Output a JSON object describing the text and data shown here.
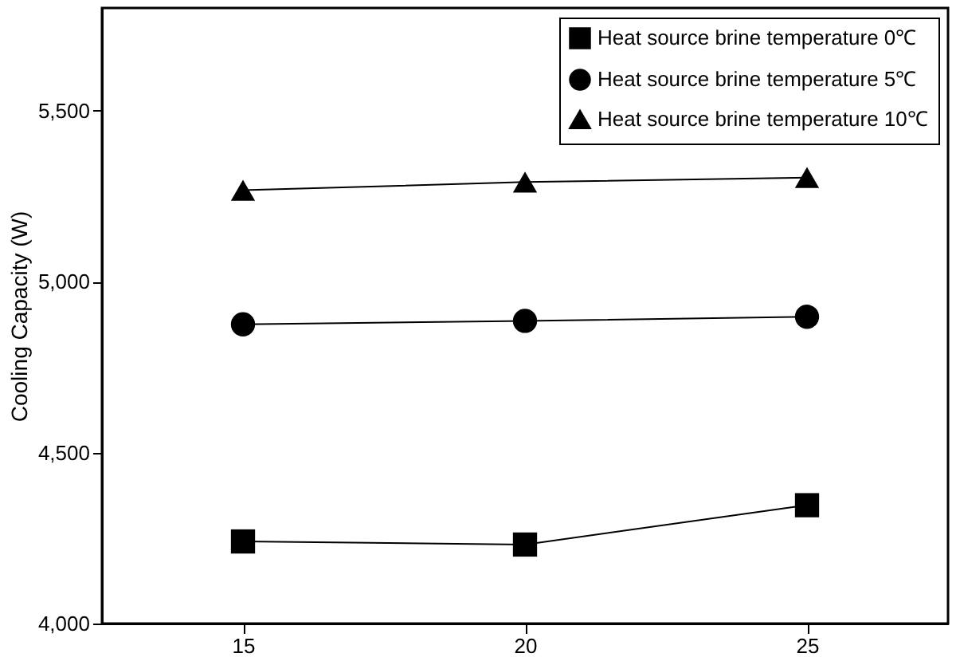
{
  "chart_data": {
    "type": "line",
    "ylabel": "Cooling Capacity (W)",
    "x": [
      15,
      20,
      25
    ],
    "xlim": [
      12.5,
      27.5
    ],
    "xticks": [
      15,
      20,
      25
    ],
    "ylim": [
      4000,
      5800
    ],
    "yticks": [
      {
        "value": 4000,
        "label": "4,000"
      },
      {
        "value": 4500,
        "label": "4,500"
      },
      {
        "value": 5000,
        "label": "5,000"
      },
      {
        "value": 5500,
        "label": "5,500"
      }
    ],
    "grid": false,
    "legend": "top right",
    "line_style": "solid",
    "series": [
      {
        "name": "Heat source brine temperature 0℃",
        "color": "#000000",
        "marker": "square",
        "values": [
          4240,
          4231,
          4346
        ]
      },
      {
        "name": "Heat source brine temperature 5℃",
        "color": "#000000",
        "marker": "circle",
        "values": [
          4875,
          4885,
          4897
        ]
      },
      {
        "name": "Heat source brine temperature 10℃",
        "color": "#000000",
        "marker": "triangle",
        "values": [
          5267,
          5291,
          5304
        ]
      }
    ]
  }
}
